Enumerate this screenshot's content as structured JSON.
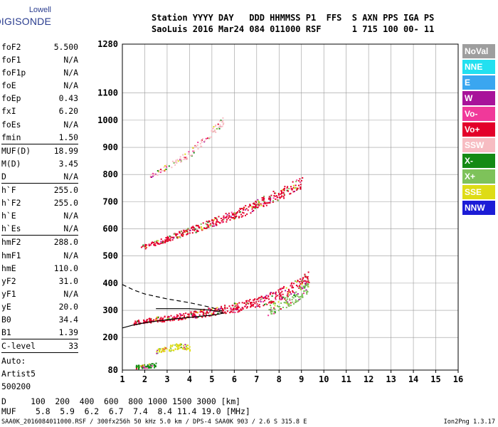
{
  "logo": {
    "line1": "Lowell",
    "line2": "DIGISONDE"
  },
  "header": {
    "line1": "Station YYYY DAY   DDD HHMMSS P1  FFS  S AXN PPS IGA PS",
    "line2": "SaoLuis 2016 Mar24 084 011000 RSF      1 715 100 00- 11"
  },
  "params_a": [
    {
      "k": "foF2",
      "v": "5.500"
    },
    {
      "k": "foF1",
      "v": "N/A"
    },
    {
      "k": "foF1p",
      "v": "N/A"
    },
    {
      "k": "foE",
      "v": "N/A"
    },
    {
      "k": "foEp",
      "v": "0.43"
    },
    {
      "k": "fxI",
      "v": "6.20"
    },
    {
      "k": "foEs",
      "v": "N/A"
    },
    {
      "k": "fmin",
      "v": "1.50"
    }
  ],
  "params_b": [
    {
      "k": "MUF(D)",
      "v": "18.99"
    },
    {
      "k": "M(D)",
      "v": "3.45"
    },
    {
      "k": "D",
      "v": "N/A"
    }
  ],
  "params_c": [
    {
      "k": "h`F",
      "v": "255.0"
    },
    {
      "k": "h`F2",
      "v": "255.0"
    },
    {
      "k": "h`E",
      "v": "N/A"
    },
    {
      "k": "h`Es",
      "v": "N/A"
    }
  ],
  "params_d": [
    {
      "k": "hmF2",
      "v": "288.0"
    },
    {
      "k": "hmF1",
      "v": "N/A"
    },
    {
      "k": "hmE",
      "v": "110.0"
    },
    {
      "k": "yF2",
      "v": "31.0"
    },
    {
      "k": "yF1",
      "v": "N/A"
    },
    {
      "k": "yE",
      "v": "20.0"
    },
    {
      "k": "B0",
      "v": "34.4"
    },
    {
      "k": "B1",
      "v": "1.39"
    }
  ],
  "params_e": [
    {
      "k": "C-level",
      "v": "33"
    }
  ],
  "auto": {
    "l1": "Auto:",
    "l2": "Artist5",
    "l3": "500200"
  },
  "legend": [
    {
      "label": "NoVal",
      "color": "#9e9e9e"
    },
    {
      "label": "NNE",
      "color": "#22e0f0"
    },
    {
      "label": "E",
      "color": "#3aa6f0"
    },
    {
      "label": "W",
      "color": "#a8129a"
    },
    {
      "label": "Vo-",
      "color": "#f0399a"
    },
    {
      "label": "Vo+",
      "color": "#e3002a"
    },
    {
      "label": "SSW",
      "color": "#f7bcc2"
    },
    {
      "label": "X-",
      "color": "#148a14"
    },
    {
      "label": "X+",
      "color": "#7ec25a"
    },
    {
      "label": "SSE",
      "color": "#dedc16"
    },
    {
      "label": "NNW",
      "color": "#1c1cd6"
    }
  ],
  "bottom": {
    "d_line": "D     100  200  400  600  800 1000 1500 3000 [km]",
    "muf_line": "MUF    5.8  5.9  6.2  6.7  7.4  8.4 11.4 19.0 [MHz]"
  },
  "footer": {
    "left": "SAA0K_2016084011000.RSF / 300fx256h 50 kHz 5.0 km / DPS-4 SAA0K 903 / 2.6 S 315.8 E",
    "right": "Ion2Png 1.3.17"
  },
  "chart_data": {
    "type": "scatter",
    "x_ticks": [
      1,
      2,
      3,
      4,
      5,
      6,
      7,
      8,
      9,
      10,
      11,
      12,
      13,
      14,
      15,
      16
    ],
    "y_ticks": [
      80,
      200,
      300,
      400,
      500,
      600,
      700,
      800,
      900,
      1000,
      1100,
      1280
    ],
    "xlim": [
      1,
      16
    ],
    "ylim": [
      80,
      1280
    ],
    "grid": true,
    "legend_position": "right",
    "series": [
      {
        "name": "Vo+",
        "x": [
          1.5,
          2.0,
          2.5,
          3.0,
          3.5,
          4.0,
          4.5,
          5.0,
          5.5,
          6.0,
          6.5,
          7.0,
          7.5,
          8.0,
          8.5,
          9.0,
          9.3
        ],
        "y": [
          255,
          262,
          268,
          272,
          278,
          284,
          290,
          298,
          305,
          312,
          320,
          330,
          345,
          360,
          380,
          405,
          420
        ]
      },
      {
        "name": "X+",
        "x": [
          7.5,
          8.0,
          8.5,
          9.0,
          9.3
        ],
        "y": [
          300,
          320,
          340,
          370,
          390
        ]
      },
      {
        "name": "Vo+",
        "x": [
          1.8,
          2.5,
          3.0,
          3.5,
          4.0,
          4.5,
          5.0,
          5.5,
          6.0,
          6.5,
          7.0,
          7.5,
          8.0,
          8.5,
          9.0
        ],
        "y": [
          532,
          550,
          565,
          580,
          595,
          610,
          625,
          640,
          655,
          670,
          690,
          710,
          730,
          750,
          775
        ]
      },
      {
        "name": "SSW",
        "x": [
          2.2,
          3.0,
          4.0,
          5.0,
          5.5
        ],
        "y": [
          795,
          830,
          880,
          960,
          1000
        ]
      },
      {
        "name": "X-",
        "x": [
          1.6,
          2.0,
          2.5
        ],
        "y": [
          93,
          95,
          100
        ]
      },
      {
        "name": "SSE",
        "x": [
          2.5,
          3.0,
          3.5,
          4.0
        ],
        "y": [
          150,
          160,
          170,
          160
        ]
      }
    ],
    "curves": [
      {
        "name": "profile",
        "x": [
          1.0,
          1.5,
          2.0,
          2.5,
          3.0,
          3.5,
          4.0,
          4.5,
          5.0,
          5.3,
          5.5,
          5.3,
          4.8,
          4.0,
          3.0,
          2.5
        ],
        "y": [
          235,
          246,
          254,
          260,
          265,
          270,
          274,
          278,
          282,
          286,
          290,
          296,
          302,
          306,
          306,
          306
        ],
        "style": "solid"
      },
      {
        "name": "profile-extrapolated",
        "x": [
          1.0,
          1.5,
          2.0,
          3.0,
          4.0,
          5.0,
          5.5
        ],
        "y": [
          395,
          375,
          360,
          342,
          328,
          310,
          296
        ],
        "style": "dashed"
      }
    ]
  }
}
